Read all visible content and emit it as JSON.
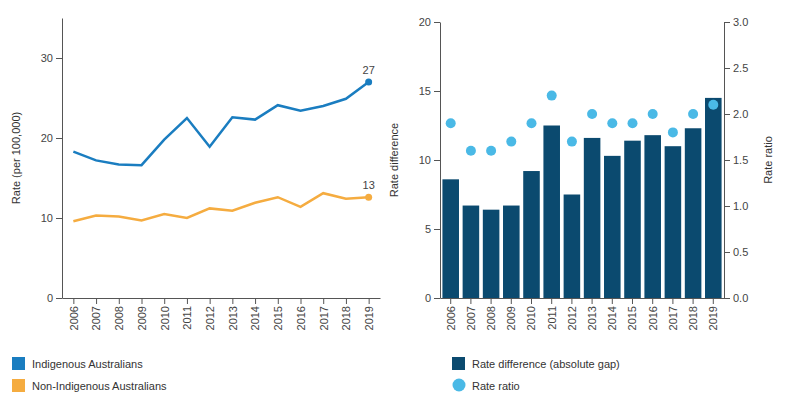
{
  "chart_data": [
    {
      "type": "line",
      "categories": [
        "2006",
        "2007",
        "2008",
        "2009",
        "2010",
        "2011",
        "2012",
        "2013",
        "2014",
        "2015",
        "2016",
        "2017",
        "2018",
        "2019"
      ],
      "y_label": "Rate (per 100,000)",
      "ylim": [
        0,
        35
      ],
      "yticks": [
        0,
        10,
        20,
        30
      ],
      "legend": "bottom",
      "series": [
        {
          "name": "Indigenous Australians",
          "color": "#1a7dc0",
          "values": [
            18.3,
            17.2,
            16.7,
            16.6,
            19.8,
            22.5,
            18.9,
            22.6,
            22.3,
            24.1,
            23.4,
            24.0,
            24.9,
            27.0
          ],
          "value_labels": [
            null,
            null,
            null,
            null,
            null,
            null,
            null,
            null,
            null,
            null,
            null,
            null,
            null,
            "27"
          ]
        },
        {
          "name": "Non-Indigenous Australians",
          "color": "#f5ac40",
          "values": [
            9.6,
            10.3,
            10.2,
            9.7,
            10.5,
            10.0,
            11.2,
            10.9,
            11.9,
            12.6,
            11.4,
            13.1,
            12.4,
            12.6
          ],
          "value_labels": [
            null,
            null,
            null,
            null,
            null,
            null,
            null,
            null,
            null,
            null,
            null,
            null,
            null,
            "13"
          ]
        }
      ]
    },
    {
      "type": "bar",
      "categories": [
        "2006",
        "2007",
        "2008",
        "2009",
        "2010",
        "2011",
        "2012",
        "2013",
        "2014",
        "2015",
        "2016",
        "2017",
        "2018",
        "2019"
      ],
      "y_label": "Rate difference",
      "y2_label": "Rate ratio",
      "ylim": [
        0,
        20
      ],
      "yticks": [
        0,
        5,
        10,
        15,
        20
      ],
      "y2lim": [
        0,
        3
      ],
      "y2ticks": [
        {
          "value": 0,
          "label": "0.0"
        },
        {
          "value": 0.5,
          "label": "0.5"
        },
        {
          "value": 1,
          "label": "1.0"
        },
        {
          "value": 1.5,
          "label": "1.5"
        },
        {
          "value": 2,
          "label": "2.0"
        },
        {
          "value": 2.5,
          "label": "2.5"
        },
        {
          "value": 3,
          "label": "3.0"
        }
      ],
      "legend": "bottom",
      "series": [
        {
          "name": "Rate difference (absolute gap)",
          "type": "bar",
          "color": "#0b4a6f",
          "values": [
            8.6,
            6.7,
            6.4,
            6.7,
            9.2,
            12.5,
            7.5,
            11.6,
            10.3,
            11.4,
            11.8,
            11.0,
            12.3,
            14.5
          ]
        },
        {
          "name": "Rate ratio",
          "type": "scatter",
          "axis": "y2",
          "color": "#4ab9e6",
          "marker": "circle",
          "values": [
            1.9,
            1.6,
            1.6,
            1.7,
            1.9,
            2.2,
            1.7,
            2.0,
            1.9,
            1.9,
            2.0,
            1.8,
            2.0,
            2.1
          ]
        }
      ]
    }
  ]
}
